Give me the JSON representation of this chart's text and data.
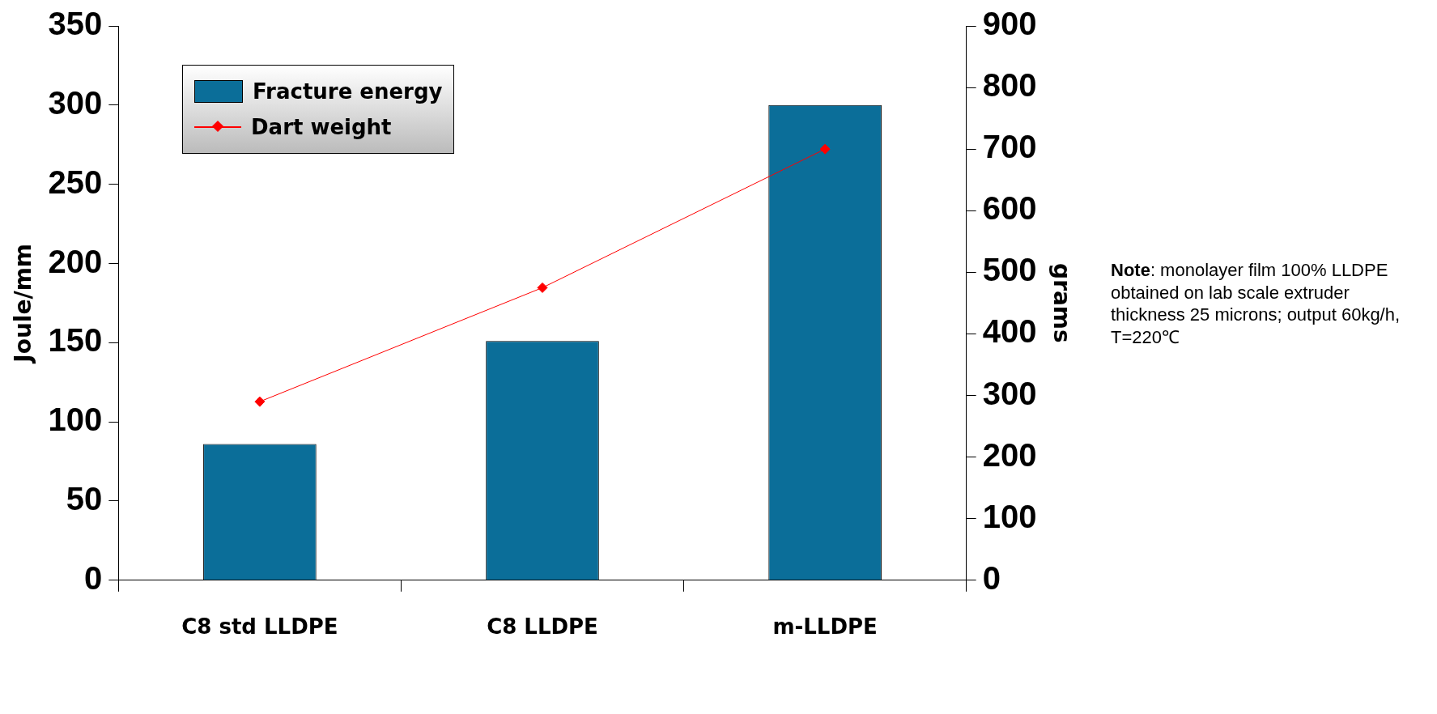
{
  "chart_data": {
    "type": "bar",
    "categories": [
      "C8 std LLDPE",
      "C8 LLDPE",
      "m-LLDPE"
    ],
    "ylabel": "Joule/mm",
    "y2label": "grams",
    "series": [
      {
        "name": "Fracture energy",
        "color": "#0b6e99",
        "values": [
          86,
          151,
          300
        ]
      },
      {
        "name": "Dart weight",
        "type": "line",
        "axis": "y2",
        "color": "#ff0000",
        "marker": "diamond",
        "values": [
          290,
          475,
          700
        ]
      }
    ],
    "ylim": [
      0,
      350
    ],
    "yticks": [
      0,
      50,
      100,
      150,
      200,
      250,
      300,
      350
    ],
    "y2lim": [
      0,
      900
    ],
    "y2ticks": [
      0,
      100,
      200,
      300,
      400,
      500,
      600,
      700,
      800,
      900
    ],
    "grid": false,
    "legend": "top left",
    "annotations": [
      "Note: monolayer film 100% LLDPE obtained on lab scale extruder thickness 25 microns; output 60kg/h, T=220℃"
    ]
  }
}
